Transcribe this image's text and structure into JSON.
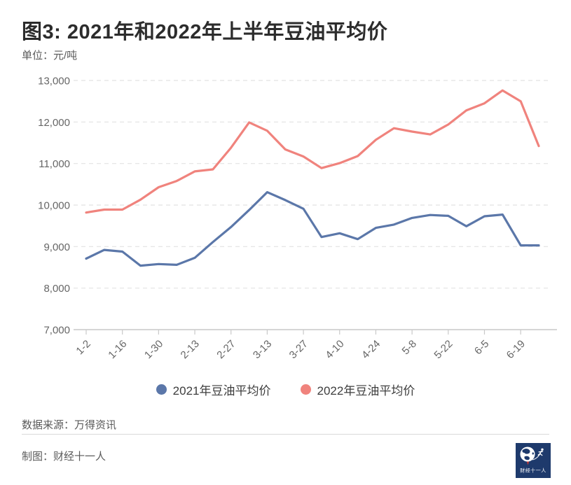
{
  "header": {
    "title": "图3: 2021年和2022年上半年豆油平均价",
    "unit": "单位：元/吨"
  },
  "chart_data": {
    "type": "line",
    "x": [
      "1-2",
      "1-9",
      "1-16",
      "1-23",
      "1-30",
      "2-6",
      "2-13",
      "2-20",
      "2-27",
      "3-6",
      "3-13",
      "3-20",
      "3-27",
      "4-3",
      "4-10",
      "4-17",
      "4-24",
      "5-1",
      "5-8",
      "5-15",
      "5-22",
      "5-29",
      "6-5",
      "6-12",
      "6-19",
      "6-26"
    ],
    "x_labeled_every": 2,
    "x_tick_labels": [
      "1-2",
      "1-16",
      "1-30",
      "2-13",
      "2-27",
      "3-13",
      "3-27",
      "4-10",
      "4-24",
      "5-8",
      "5-22",
      "6-5",
      "6-19"
    ],
    "series": [
      {
        "name": "2021年豆油平均价",
        "color": "#5b77a9",
        "values": [
          8710,
          8920,
          8880,
          8540,
          8580,
          8560,
          8730,
          9110,
          9470,
          9880,
          10310,
          10120,
          9910,
          9230,
          9320,
          9180,
          9450,
          9530,
          9690,
          9760,
          9740,
          9490,
          9730,
          9770,
          9030,
          9030
        ]
      },
      {
        "name": "2022年豆油平均价",
        "color": "#f0837d",
        "values": [
          9820,
          9890,
          9890,
          10130,
          10430,
          10580,
          10810,
          10860,
          11380,
          11990,
          11790,
          11340,
          11170,
          10890,
          11010,
          11180,
          11570,
          11850,
          11770,
          11700,
          11940,
          12280,
          12450,
          12760,
          12500,
          11420
        ]
      }
    ],
    "ylim": [
      7000,
      13000
    ],
    "ytick_step": 1000,
    "yticks": [
      "7,000",
      "8,000",
      "9,000",
      "10,000",
      "11,000",
      "12,000",
      "13,000"
    ],
    "ylabel_unit": "元/吨",
    "grid": "horizontal-dashed",
    "legend_position": "bottom"
  },
  "footer": {
    "source": "数据来源：万得资讯",
    "credit": "制图：财经十一人",
    "logo_text": "财经十一人"
  }
}
